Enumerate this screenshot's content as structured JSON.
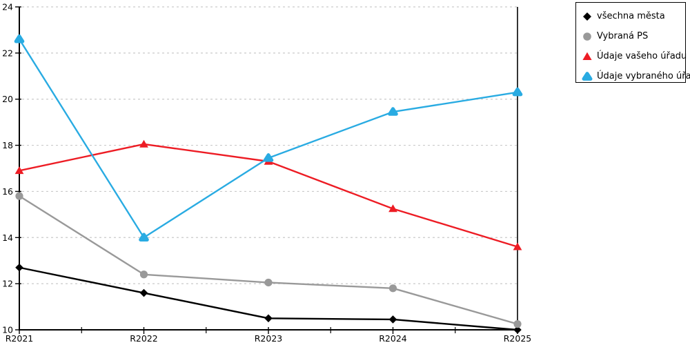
{
  "chart_data": {
    "type": "line",
    "title": "",
    "xlabel": "",
    "ylabel": "",
    "categories": [
      "R2021",
      "R2022",
      "R2023",
      "R2024",
      "R2025"
    ],
    "series": [
      {
        "name": "všechna města",
        "color": "#000000",
        "marker": "diamond",
        "values": [
          12.7,
          11.6,
          10.5,
          10.45,
          10.0
        ]
      },
      {
        "name": "Vybraná PS",
        "color": "#999999",
        "marker": "circle",
        "values": [
          15.8,
          12.4,
          12.05,
          11.8,
          10.25
        ]
      },
      {
        "name": "Údaje vašeho úřadu",
        "color": "#ed1c24",
        "marker": "triangle",
        "values": [
          16.9,
          18.05,
          17.3,
          15.25,
          13.6
        ]
      },
      {
        "name": "Údaje vybraného úřadu",
        "color": "#29abe2",
        "marker": "triangle-rounded",
        "values": [
          22.6,
          14.0,
          17.45,
          19.45,
          20.3
        ]
      }
    ],
    "ylim": [
      10,
      24
    ],
    "yticks": [
      10,
      12,
      14,
      16,
      18,
      20,
      22,
      24
    ],
    "grid": "horizontal-dashed",
    "legend_position": "top-right",
    "colors": {
      "axis": "#000000",
      "grid": "#c9c9c9",
      "background": "#ffffff",
      "tick_label": "#000000"
    }
  }
}
